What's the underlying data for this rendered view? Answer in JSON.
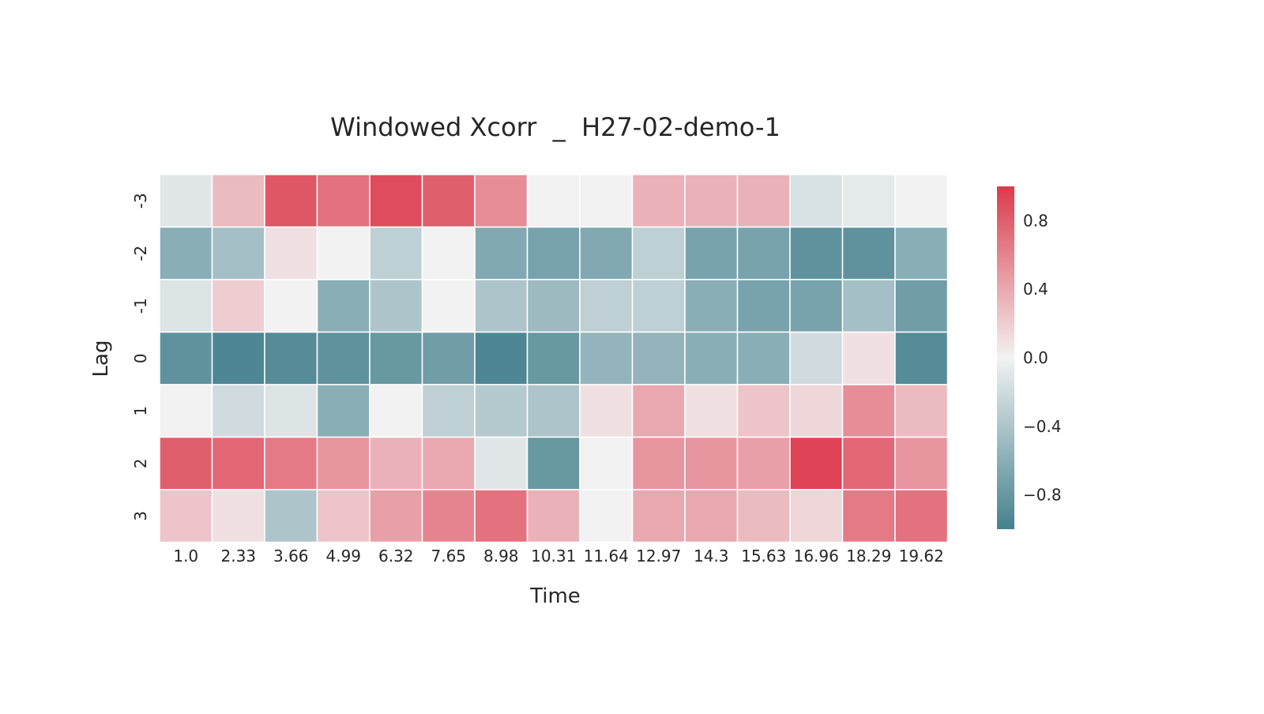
{
  "chart_data": {
    "type": "heatmap",
    "title": "Windowed Xcorr  _  H27-02-demo-1",
    "xlabel": "Time",
    "ylabel": "Lag",
    "x_categories": [
      "1.0",
      "2.33",
      "3.66",
      "4.99",
      "6.32",
      "7.65",
      "8.98",
      "10.31",
      "11.64",
      "12.97",
      "14.3",
      "15.63",
      "16.96",
      "18.29",
      "19.62"
    ],
    "y_categories": [
      "-3",
      "-2",
      "-1",
      "0",
      "1",
      "2",
      "3"
    ],
    "values": [
      [
        -0.1,
        0.3,
        0.85,
        0.7,
        0.9,
        0.8,
        0.55,
        0.0,
        0.0,
        0.35,
        0.35,
        0.35,
        -0.15,
        -0.08,
        0.0
      ],
      [
        -0.6,
        -0.45,
        0.1,
        0.0,
        -0.3,
        0.0,
        -0.65,
        -0.7,
        -0.65,
        -0.3,
        -0.7,
        -0.7,
        -0.85,
        -0.85,
        -0.6
      ],
      [
        -0.12,
        0.2,
        0.0,
        -0.6,
        -0.4,
        0.0,
        -0.4,
        -0.5,
        -0.3,
        -0.3,
        -0.6,
        -0.7,
        -0.7,
        -0.45,
        -0.75
      ],
      [
        -0.85,
        -0.95,
        -0.9,
        -0.85,
        -0.8,
        -0.75,
        -0.95,
        -0.8,
        -0.55,
        -0.55,
        -0.6,
        -0.6,
        -0.2,
        0.1,
        -0.9
      ],
      [
        0.0,
        -0.2,
        -0.12,
        -0.6,
        0.0,
        -0.3,
        -0.35,
        -0.4,
        0.1,
        0.4,
        0.1,
        0.25,
        0.15,
        0.55,
        0.3
      ],
      [
        0.8,
        0.75,
        0.65,
        0.5,
        0.35,
        0.4,
        -0.1,
        -0.8,
        0.0,
        0.5,
        0.5,
        0.45,
        0.95,
        0.75,
        0.5
      ],
      [
        0.25,
        0.1,
        -0.4,
        0.25,
        0.45,
        0.6,
        0.7,
        0.35,
        0.0,
        0.4,
        0.4,
        0.3,
        0.15,
        0.65,
        0.7
      ]
    ],
    "vmin": -1.0,
    "vmax": 1.0,
    "colorbar": {
      "ticks": [
        0.8,
        0.4,
        0.0,
        -0.4,
        -0.8
      ],
      "tick_labels": [
        "0.8",
        "0.4",
        "0.0",
        "−0.4",
        "−0.8"
      ]
    },
    "colormap": {
      "negative_end": "#45818e",
      "center": "#f2f2f2",
      "positive_end": "#dc3a4c"
    },
    "grid": false,
    "legend": "right"
  }
}
